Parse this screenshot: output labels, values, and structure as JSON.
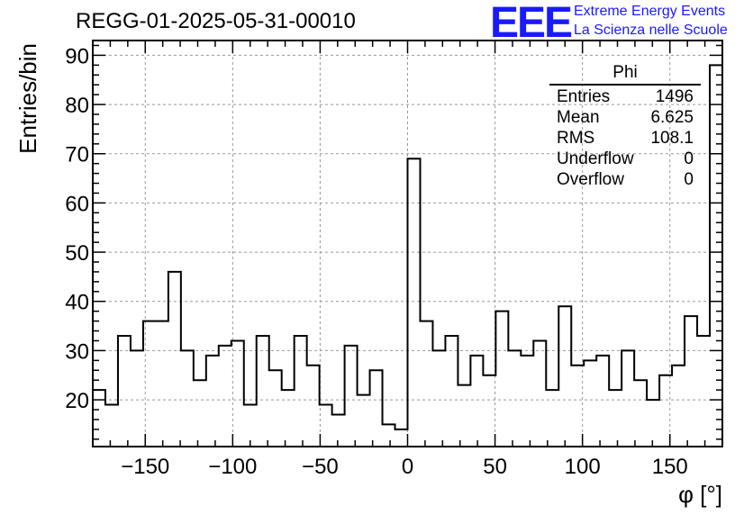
{
  "chart": {
    "title": "REGG-01-2025-05-31-00010",
    "logo": {
      "mark": "EEE",
      "line1": "Extreme Energy Events",
      "line2": "La Scienza nelle Scuole",
      "color": "#1a1aff"
    },
    "stats": {
      "title": "Phi",
      "rows": [
        {
          "label": "Entries",
          "value": "1496"
        },
        {
          "label": "Mean",
          "value": "6.625"
        },
        {
          "label": "RMS",
          "value": "108.1"
        },
        {
          "label": "Underflow",
          "value": "0"
        },
        {
          "label": "Overflow",
          "value": "0"
        }
      ]
    }
  },
  "chart_data": {
    "type": "bar",
    "histogram_style": "step",
    "title": "REGG-01-2025-05-31-00010",
    "xlabel": "φ [°]",
    "ylabel": "Entries/bin",
    "xlim": [
      -180,
      180
    ],
    "ylim": [
      10.5,
      93
    ],
    "grid": true,
    "bin_width": 7.2,
    "x_ticks": [
      -150,
      -100,
      -50,
      0,
      50,
      100,
      150
    ],
    "x_tick_labels": [
      "−150",
      "−100",
      "−50",
      "0",
      "50",
      "100",
      "150"
    ],
    "y_ticks": [
      20,
      30,
      40,
      50,
      60,
      70,
      80,
      90
    ],
    "y_tick_labels": [
      "20",
      "30",
      "40",
      "50",
      "60",
      "70",
      "80",
      "90"
    ],
    "values": [
      22,
      19,
      33,
      30,
      36,
      36,
      46,
      30,
      24,
      29,
      31,
      32,
      19,
      33,
      26,
      22,
      33,
      27,
      19,
      17,
      31,
      21,
      26,
      15,
      14,
      69,
      36,
      30,
      33,
      23,
      29,
      25,
      38,
      30,
      29,
      32,
      22,
      39,
      27,
      28,
      29,
      22,
      30,
      24,
      20,
      25,
      27,
      37,
      33,
      88
    ],
    "line_color": "#000000"
  }
}
